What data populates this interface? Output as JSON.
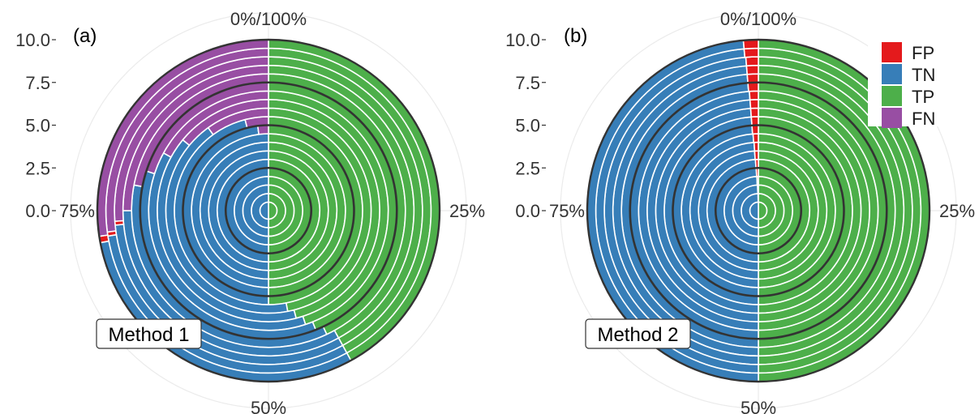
{
  "legend": {
    "items": [
      {
        "label": "FP",
        "color": "#e41a1c"
      },
      {
        "label": "TN",
        "color": "#377eb8"
      },
      {
        "label": "TP",
        "color": "#4daf4a"
      },
      {
        "label": "FN",
        "color": "#984ea3"
      }
    ]
  },
  "chart_data": [
    {
      "type": "polar stacked bar",
      "panel_label": "(a)",
      "method_label": "Method 1",
      "angle_tick_labels": [
        "0%/100%",
        "25%",
        "50%",
        "75%"
      ],
      "radial_tick_labels": [
        "0.0",
        "2.5",
        "5.0",
        "7.5",
        "10.0"
      ],
      "rlim": [
        0,
        10
      ],
      "reference_circles": [
        2.5,
        5.0,
        7.5,
        10.0
      ],
      "ring_boundaries": [
        0.5,
        1.0,
        1.5,
        2.0,
        2.5,
        3.0,
        3.5,
        4.0,
        4.5,
        5.0,
        5.5,
        6.0,
        6.5,
        7.0,
        7.5,
        8.0,
        8.5,
        9.0,
        9.5,
        10.0
      ],
      "category_order": [
        "TP",
        "TN",
        "FP",
        "FN"
      ],
      "series": [
        {
          "name": "TP",
          "values": [
            50,
            50,
            50,
            50,
            50,
            50,
            50,
            50,
            50,
            50,
            50,
            47,
            46,
            45,
            44,
            43,
            42,
            42,
            42,
            42
          ]
        },
        {
          "name": "TN",
          "values": [
            50,
            50,
            50,
            50,
            50,
            50,
            50,
            50,
            50,
            48,
            46,
            43,
            40,
            38,
            36,
            35,
            33,
            31.5,
            30.5,
            30
          ]
        },
        {
          "name": "FP",
          "values": [
            0,
            0,
            0,
            0,
            0,
            0,
            0,
            0,
            0,
            0,
            0,
            0,
            0,
            0,
            0,
            0,
            0,
            0.4,
            0.4,
            0.6
          ]
        },
        {
          "name": "FN",
          "values": [
            0,
            0,
            0,
            0,
            0,
            0,
            0,
            0,
            0,
            2,
            4,
            10,
            14,
            17,
            20,
            22,
            25,
            26.1,
            27.1,
            27.4
          ]
        }
      ]
    },
    {
      "type": "polar stacked bar",
      "panel_label": "(b)",
      "method_label": "Method 2",
      "angle_tick_labels": [
        "0%/100%",
        "25%",
        "50%",
        "75%"
      ],
      "radial_tick_labels": [
        "0.0",
        "2.5",
        "5.0",
        "7.5",
        "10.0"
      ],
      "rlim": [
        0,
        10
      ],
      "reference_circles": [
        2.5,
        5.0,
        7.5,
        10.0
      ],
      "ring_boundaries": [
        0.5,
        1.0,
        1.5,
        2.0,
        2.5,
        3.0,
        3.5,
        4.0,
        4.5,
        5.0,
        5.5,
        6.0,
        6.5,
        7.0,
        7.5,
        8.0,
        8.5,
        9.0,
        9.5,
        10.0
      ],
      "category_order": [
        "TP",
        "TN",
        "FP",
        "FN"
      ],
      "series": [
        {
          "name": "TP",
          "values": [
            50,
            50,
            50,
            50,
            50,
            50,
            50,
            50,
            50,
            50,
            50,
            50,
            50,
            50,
            50,
            50,
            50,
            50,
            50,
            50
          ]
        },
        {
          "name": "TN",
          "values": [
            50,
            49.7,
            49.5,
            49.3,
            49.2,
            49.1,
            49.0,
            49.0,
            48.9,
            48.8,
            48.8,
            48.8,
            48.8,
            48.8,
            48.7,
            48.7,
            48.7,
            48.7,
            48.6,
            48.6
          ]
        },
        {
          "name": "FP",
          "values": [
            0,
            0.3,
            0.5,
            0.7,
            0.8,
            0.9,
            1.0,
            1.0,
            1.1,
            1.2,
            1.2,
            1.2,
            1.2,
            1.2,
            1.3,
            1.3,
            1.3,
            1.3,
            1.4,
            1.4
          ]
        },
        {
          "name": "FN",
          "values": [
            0,
            0,
            0,
            0,
            0,
            0,
            0,
            0,
            0,
            0,
            0,
            0,
            0,
            0,
            0,
            0,
            0,
            0,
            0,
            0
          ]
        }
      ]
    }
  ]
}
